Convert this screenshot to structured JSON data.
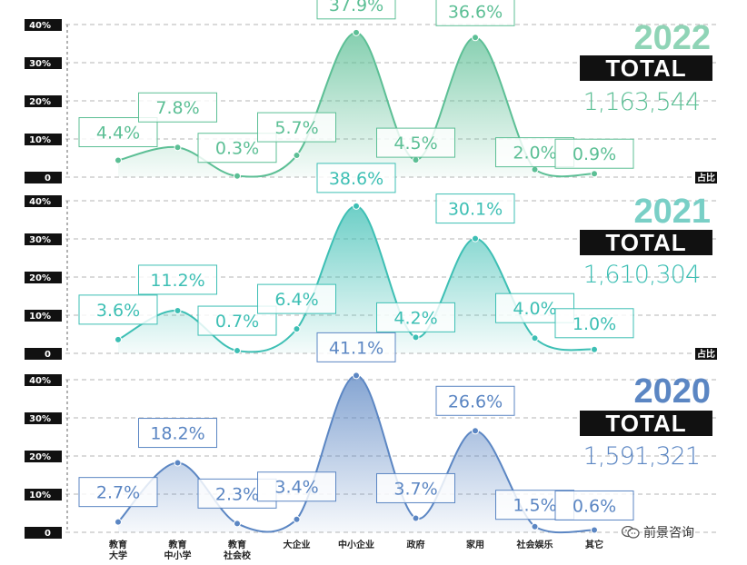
{
  "chart_data": [
    {
      "type": "area",
      "year_label": "2022",
      "total_label": "TOTAL",
      "total_value": "1,163,544",
      "color": "#5cbf95",
      "year_color": "#8fd4b6",
      "total_value_color": "#5cbf95",
      "yticks": [
        "40%",
        "30%",
        "20%",
        "10%",
        "0"
      ],
      "ylim": [
        0,
        40
      ],
      "axis_tag": "占比",
      "values": [
        4.4,
        7.8,
        0.3,
        5.7,
        37.9,
        4.5,
        36.6,
        2.0,
        0.9
      ],
      "labels": [
        "4.4%",
        "7.8%",
        "0.3%",
        "5.7%",
        "37.9%",
        "4.5%",
        "36.6%",
        "2.0%",
        "0.9%"
      ]
    },
    {
      "type": "area",
      "year_label": "2021",
      "total_label": "TOTAL",
      "total_value": "1,610,304",
      "color": "#3dbfb4",
      "year_color": "#79cfc6",
      "total_value_color": "#3dbfb4",
      "yticks": [
        "40%",
        "30%",
        "20%",
        "10%",
        "0"
      ],
      "ylim": [
        0,
        40
      ],
      "axis_tag": "占比",
      "values": [
        3.6,
        11.2,
        0.7,
        6.4,
        38.6,
        4.2,
        30.1,
        4.0,
        1.0
      ],
      "labels": [
        "3.6%",
        "11.2%",
        "0.7%",
        "6.4%",
        "38.6%",
        "4.2%",
        "30.1%",
        "4.0%",
        "1.0%"
      ]
    },
    {
      "type": "area",
      "year_label": "2020",
      "total_label": "TOTAL",
      "total_value": "1,591,321",
      "color": "#5b86c3",
      "year_color": "#5b86c3",
      "total_value_color": "#5b86c3",
      "yticks": [
        "40%",
        "30%",
        "20%",
        "10%",
        "0"
      ],
      "ylim": [
        0,
        40
      ],
      "axis_tag": "",
      "values": [
        2.7,
        18.2,
        2.3,
        3.4,
        41.1,
        3.7,
        26.6,
        1.5,
        0.6
      ],
      "labels": [
        "2.7%",
        "18.2%",
        "2.3%",
        "3.4%",
        "41.1%",
        "3.7%",
        "26.6%",
        "1.5%",
        "0.6%"
      ]
    }
  ],
  "categories": [
    [
      "教育",
      "大学"
    ],
    [
      "教育",
      "中小学"
    ],
    [
      "教育",
      "社会校"
    ],
    [
      "大企业"
    ],
    [
      "中小企业"
    ],
    [
      "政府"
    ],
    [
      "家用"
    ],
    [
      "社会娱乐"
    ],
    [
      "其它"
    ]
  ],
  "watermark": {
    "text": "前景咨询",
    "icon": "wechat-icon"
  }
}
